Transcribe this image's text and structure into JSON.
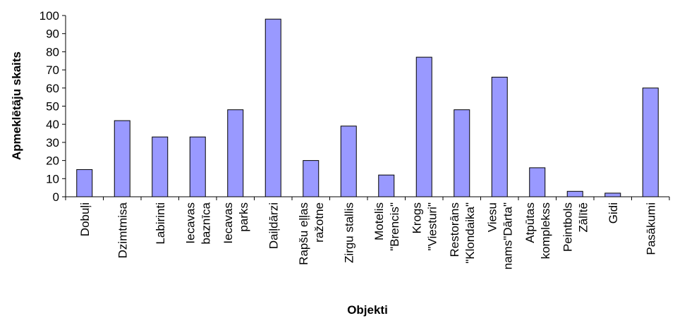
{
  "chart_data": {
    "type": "bar",
    "title": "",
    "xlabel": "Objekti",
    "ylabel": "Apmeklētāju skaits",
    "ylim": [
      0,
      100
    ],
    "yticks": [
      0,
      10,
      20,
      30,
      40,
      50,
      60,
      70,
      80,
      90,
      100
    ],
    "grid": false,
    "legend": "none",
    "bar_color": "#9999ff",
    "bar_edge_color": "#000000",
    "categories": [
      [
        "Dobuļi"
      ],
      [
        "Dzimtmisa"
      ],
      [
        "Labirinti"
      ],
      [
        "Iecavas",
        "baznīca"
      ],
      [
        "Iecavas",
        "parks"
      ],
      [
        "Daiļdārzi"
      ],
      [
        "Rapšu eļļas",
        "ražotne"
      ],
      [
        "Zirgu stallis"
      ],
      [
        "Motelis",
        "\"Brencis\""
      ],
      [
        "Krogs",
        "\"Viesturi\""
      ],
      [
        "Restorāns",
        "\"Klondaika\""
      ],
      [
        "Viesu",
        "nams\"Dārta\""
      ],
      [
        "Atpūtas",
        "komplekss"
      ],
      [
        "Peintbols",
        "Zālītē"
      ],
      [
        "Gidi"
      ],
      [
        "Pasākumi"
      ]
    ],
    "values": [
      15,
      42,
      33,
      33,
      48,
      98,
      20,
      39,
      12,
      77,
      48,
      66,
      16,
      3,
      2,
      60
    ]
  }
}
